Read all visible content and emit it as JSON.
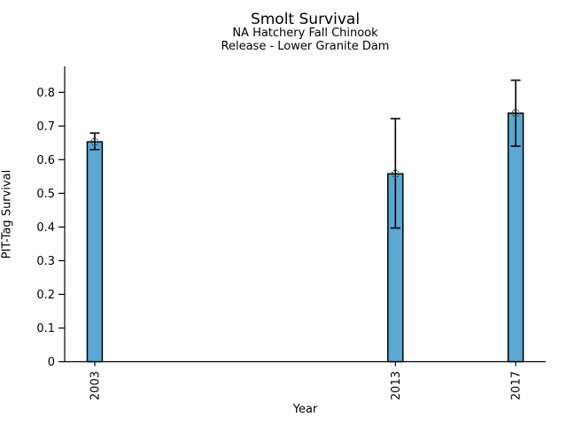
{
  "chart_data": {
    "type": "bar",
    "title": "Smolt Survival",
    "subtitle_lines": [
      "NA Hatchery Fall Chinook",
      "Release - Lower Granite Dam"
    ],
    "xlabel": "Year",
    "ylabel": "PIT-Tag Survival",
    "x": [
      2003,
      2013,
      2017
    ],
    "xtick_labels": [
      "2003",
      "2013",
      "2017"
    ],
    "values": [
      0.653,
      0.558,
      0.738
    ],
    "error_low": [
      0.63,
      0.397,
      0.64
    ],
    "error_high": [
      0.679,
      0.722,
      0.836
    ],
    "bar_width_years": 0.5,
    "xlim": [
      2002,
      2018
    ],
    "ylim": [
      0,
      0.877
    ],
    "ytick_values": [
      0,
      0.1,
      0.2,
      0.3,
      0.4,
      0.5,
      0.6,
      0.7,
      0.8
    ],
    "ytick_labels": [
      "0",
      "0.1",
      "0.2",
      "0.3",
      "0.4",
      "0.5",
      "0.6",
      "0.7",
      "0.8"
    ],
    "bar_color": "#5BA8D2",
    "bar_edge_color": "#000000",
    "errorbar_color": "#000000",
    "marker": "open-circle-dotted",
    "marker_color": "#3a3a3a",
    "grid": false,
    "legend": "none"
  }
}
